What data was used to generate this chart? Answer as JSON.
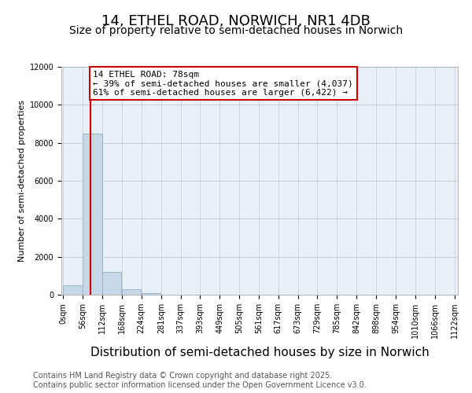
{
  "title": "14, ETHEL ROAD, NORWICH, NR1 4DB",
  "subtitle": "Size of property relative to semi-detached houses in Norwich",
  "xlabel": "Distribution of semi-detached houses by size in Norwich",
  "ylabel": "Number of semi-detached properties",
  "property_size": 78,
  "annotation_title": "14 ETHEL ROAD: 78sqm",
  "annotation_line1": "← 39% of semi-detached houses are smaller (4,037)",
  "annotation_line2": "61% of semi-detached houses are larger (6,422) →",
  "bin_edges": [
    0,
    56,
    112,
    168,
    224,
    281,
    337,
    393,
    449,
    505,
    561,
    617,
    673,
    729,
    785,
    842,
    898,
    954,
    1010,
    1066,
    1122
  ],
  "bin_labels": [
    "0sqm",
    "56sqm",
    "112sqm",
    "168sqm",
    "224sqm",
    "281sqm",
    "337sqm",
    "393sqm",
    "449sqm",
    "505sqm",
    "561sqm",
    "617sqm",
    "673sqm",
    "729sqm",
    "785sqm",
    "842sqm",
    "898sqm",
    "954sqm",
    "1010sqm",
    "1066sqm",
    "1122sqm"
  ],
  "bar_heights": [
    500,
    8500,
    1200,
    300,
    100,
    0,
    0,
    0,
    0,
    0,
    0,
    0,
    0,
    0,
    0,
    0,
    0,
    0,
    0,
    0
  ],
  "bar_color": "#c8d8e8",
  "bar_edgecolor": "#a0b8cc",
  "redline_color": "#cc0000",
  "annotation_box_color": "#cc0000",
  "ylim": [
    0,
    12000
  ],
  "yticks": [
    0,
    2000,
    4000,
    6000,
    8000,
    10000,
    12000
  ],
  "grid_color": "#cccccc",
  "background_color": "#e8f0f8",
  "footer": "Contains HM Land Registry data © Crown copyright and database right 2025.\nContains public sector information licensed under the Open Government Licence v3.0.",
  "title_fontsize": 13,
  "subtitle_fontsize": 10,
  "xlabel_fontsize": 11,
  "ylabel_fontsize": 8,
  "tick_fontsize": 7,
  "annotation_fontsize": 8,
  "footer_fontsize": 7
}
